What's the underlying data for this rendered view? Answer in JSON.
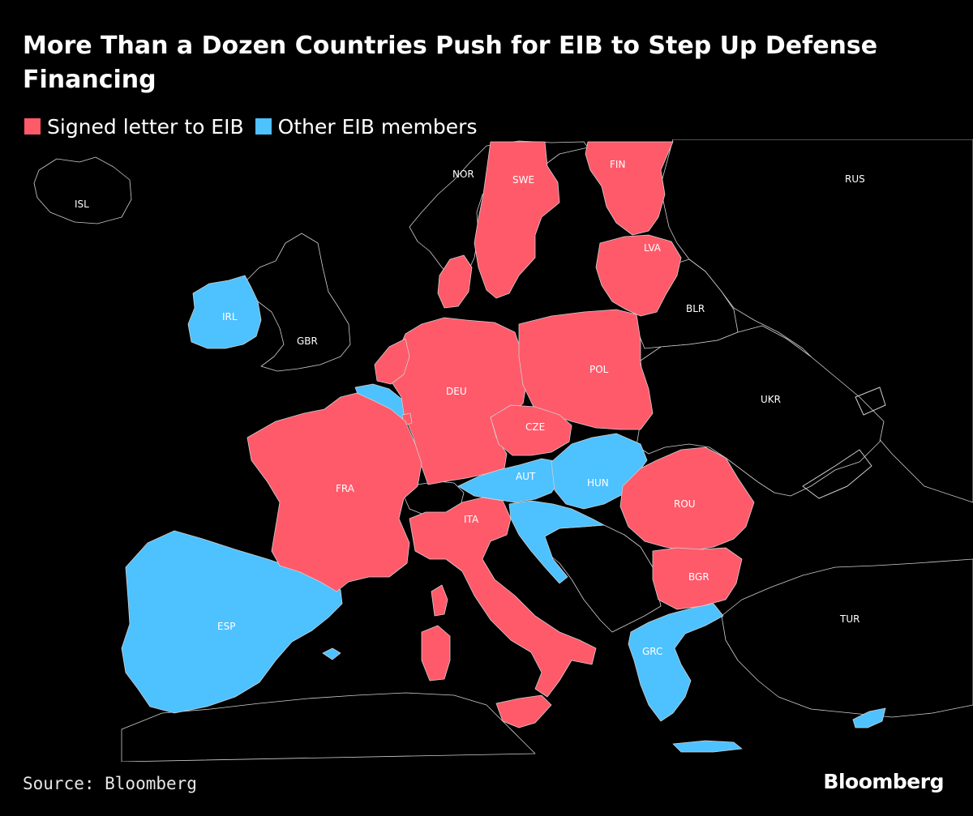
{
  "title": "More Than a Dozen Countries Push for EIB to Step Up Defense Financing",
  "legend": [
    {
      "label": "Signed letter to EIB",
      "color": "#ff5a6a"
    },
    {
      "label": "Other EIB members",
      "color": "#4ec1ff"
    }
  ],
  "map": {
    "background": "#000000",
    "border_color": "#bbbbbb",
    "countries": [
      {
        "code": "ISL",
        "status": "non-member"
      },
      {
        "code": "NOR",
        "status": "non-member"
      },
      {
        "code": "SWE",
        "status": "signed"
      },
      {
        "code": "FIN",
        "status": "signed"
      },
      {
        "code": "RUS",
        "status": "non-member"
      },
      {
        "code": "LVA",
        "status": "signed"
      },
      {
        "code": "IRL",
        "status": "member"
      },
      {
        "code": "GBR",
        "status": "non-member"
      },
      {
        "code": "BLR",
        "status": "non-member"
      },
      {
        "code": "POL",
        "status": "signed"
      },
      {
        "code": "DEU",
        "status": "signed"
      },
      {
        "code": "UKR",
        "status": "non-member"
      },
      {
        "code": "CZE",
        "status": "signed"
      },
      {
        "code": "AUT",
        "status": "member"
      },
      {
        "code": "HUN",
        "status": "member"
      },
      {
        "code": "FRA",
        "status": "signed"
      },
      {
        "code": "ROU",
        "status": "signed"
      },
      {
        "code": "ITA",
        "status": "signed"
      },
      {
        "code": "BGR",
        "status": "signed"
      },
      {
        "code": "ESP",
        "status": "member"
      },
      {
        "code": "TUR",
        "status": "non-member"
      },
      {
        "code": "GRC",
        "status": "member"
      }
    ]
  },
  "source": "Source: Bloomberg",
  "logo": "Bloomberg"
}
